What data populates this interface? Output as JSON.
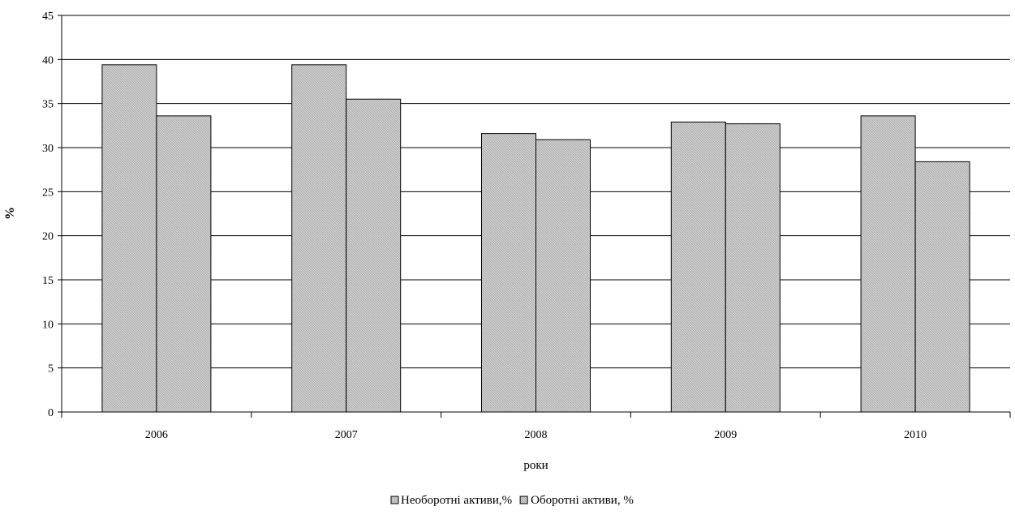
{
  "chart_data": {
    "type": "bar",
    "categories": [
      "2006",
      "2007",
      "2008",
      "2009",
      "2010"
    ],
    "series": [
      {
        "name": "Необоротні активи,%",
        "values": [
          39.4,
          39.4,
          31.6,
          32.9,
          33.6
        ]
      },
      {
        "name": "Оборотні активи, %",
        "values": [
          33.6,
          35.5,
          30.9,
          32.7,
          28.4
        ]
      }
    ],
    "xlabel": "роки",
    "ylabel": "%",
    "ylim": [
      0,
      45
    ],
    "yticks": [
      0,
      5,
      10,
      15,
      20,
      25,
      30,
      35,
      40,
      45
    ],
    "grid": true,
    "legend_position": "bottom",
    "colors": {
      "bar_fill": "#c8c8c8",
      "bar_stroke": "#000000",
      "grid": "#000000"
    }
  }
}
